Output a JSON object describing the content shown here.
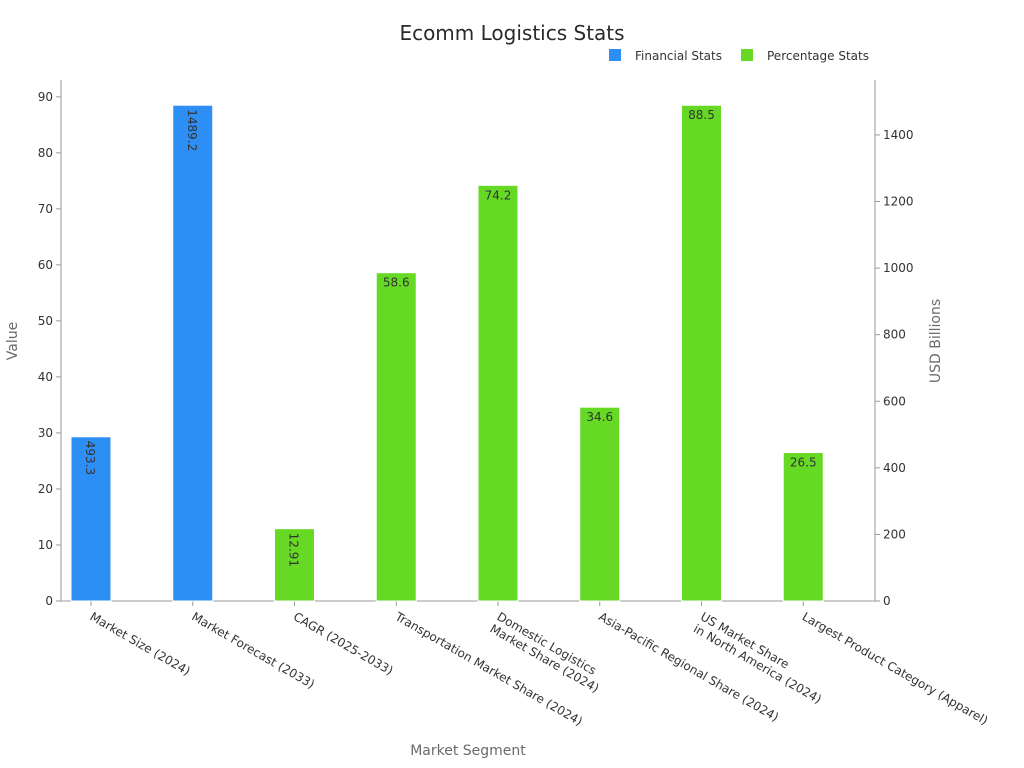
{
  "chart_data": {
    "type": "bar",
    "title": "Ecomm Logistics Stats",
    "xlabel": "Market Segment",
    "ylabel": "Value",
    "y2label": "USD Billions",
    "ylim": [
      0,
      93
    ],
    "y2lim": [
      0,
      1565
    ],
    "yticks": [
      0,
      10,
      20,
      30,
      40,
      50,
      60,
      70,
      80,
      90
    ],
    "y2ticks": [
      0,
      200,
      400,
      600,
      800,
      1000,
      1200,
      1400
    ],
    "grid": false,
    "legend_position": "top-right",
    "categories": [
      [
        "Market Size (2024)"
      ],
      [
        "Market Forecast (2033)"
      ],
      [
        "CAGR (2025-2033)"
      ],
      [
        "Transportation Market Share (2024)"
      ],
      [
        "Domestic Logistics",
        "Market Share (2024)"
      ],
      [
        "Asia-Pacific Regional Share (2024)"
      ],
      [
        "US Market Share",
        "in North America (2024)"
      ],
      [
        "Largest Product Category (Apparel)"
      ]
    ],
    "series": [
      {
        "name": "Financial Stats",
        "color": "#2d8ff5",
        "axis": "right",
        "values": [
          493.3,
          1489.2,
          null,
          null,
          null,
          null,
          null,
          null
        ],
        "labels": [
          "493.3",
          "1489.2",
          null,
          null,
          null,
          null,
          null,
          null
        ]
      },
      {
        "name": "Percentage Stats",
        "color": "#66d924",
        "axis": "left",
        "values": [
          null,
          null,
          12.91,
          58.6,
          74.2,
          34.6,
          88.5,
          26.5
        ],
        "labels": [
          null,
          null,
          "12.91",
          "58.6",
          "74.2",
          "34.6",
          "88.5",
          "26.5"
        ]
      }
    ]
  }
}
